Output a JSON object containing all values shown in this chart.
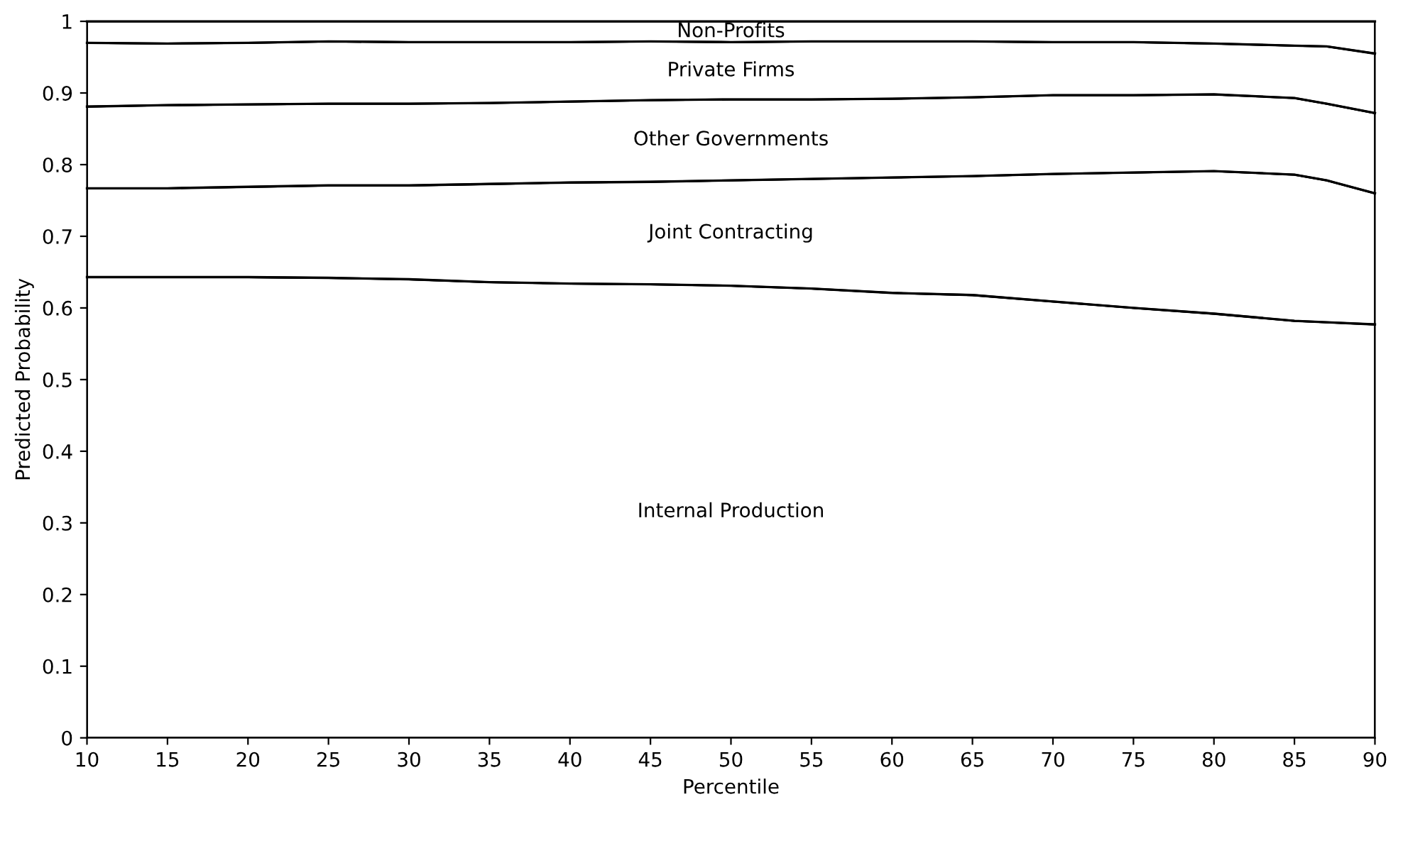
{
  "chart_data": {
    "type": "area",
    "stacked": true,
    "xlabel": "Percentile",
    "ylabel": "Predicted Probability",
    "x": [
      10,
      15,
      20,
      25,
      30,
      35,
      40,
      45,
      50,
      55,
      60,
      65,
      70,
      75,
      80,
      85,
      87,
      90
    ],
    "series": [
      {
        "name": "Internal Production",
        "color": "#000000",
        "values": [
          0.643,
          0.643,
          0.643,
          0.642,
          0.64,
          0.636,
          0.634,
          0.633,
          0.631,
          0.627,
          0.621,
          0.618,
          0.609,
          0.6,
          0.592,
          0.582,
          0.58,
          0.577
        ]
      },
      {
        "name": "Joint Contracting",
        "color": "#000000",
        "values": [
          0.124,
          0.124,
          0.126,
          0.129,
          0.131,
          0.137,
          0.141,
          0.143,
          0.147,
          0.153,
          0.161,
          0.166,
          0.178,
          0.189,
          0.199,
          0.204,
          0.198,
          0.183
        ]
      },
      {
        "name": "Other Governments",
        "color": "#000000",
        "values": [
          0.114,
          0.116,
          0.115,
          0.114,
          0.114,
          0.113,
          0.113,
          0.114,
          0.113,
          0.111,
          0.11,
          0.11,
          0.11,
          0.108,
          0.107,
          0.107,
          0.107,
          0.112
        ]
      },
      {
        "name": "Private Firms",
        "color": "#000000",
        "values": [
          0.089,
          0.086,
          0.086,
          0.087,
          0.086,
          0.085,
          0.083,
          0.082,
          0.08,
          0.081,
          0.08,
          0.078,
          0.074,
          0.074,
          0.071,
          0.073,
          0.08,
          0.083
        ]
      },
      {
        "name": "Non-Profits",
        "color": "#000000",
        "values": [
          0.03,
          0.031,
          0.03,
          0.028,
          0.029,
          0.029,
          0.029,
          0.028,
          0.029,
          0.028,
          0.028,
          0.028,
          0.029,
          0.029,
          0.031,
          0.034,
          0.035,
          0.045
        ]
      }
    ],
    "xlim": [
      10,
      90
    ],
    "xticks": [
      10,
      15,
      20,
      25,
      30,
      35,
      40,
      45,
      50,
      55,
      60,
      65,
      70,
      75,
      80,
      85,
      90
    ],
    "ylim": [
      0,
      1
    ],
    "yticks": [
      0,
      0.1,
      0.2,
      0.3,
      0.4,
      0.5,
      0.6,
      0.7,
      0.8,
      0.9,
      1
    ]
  }
}
